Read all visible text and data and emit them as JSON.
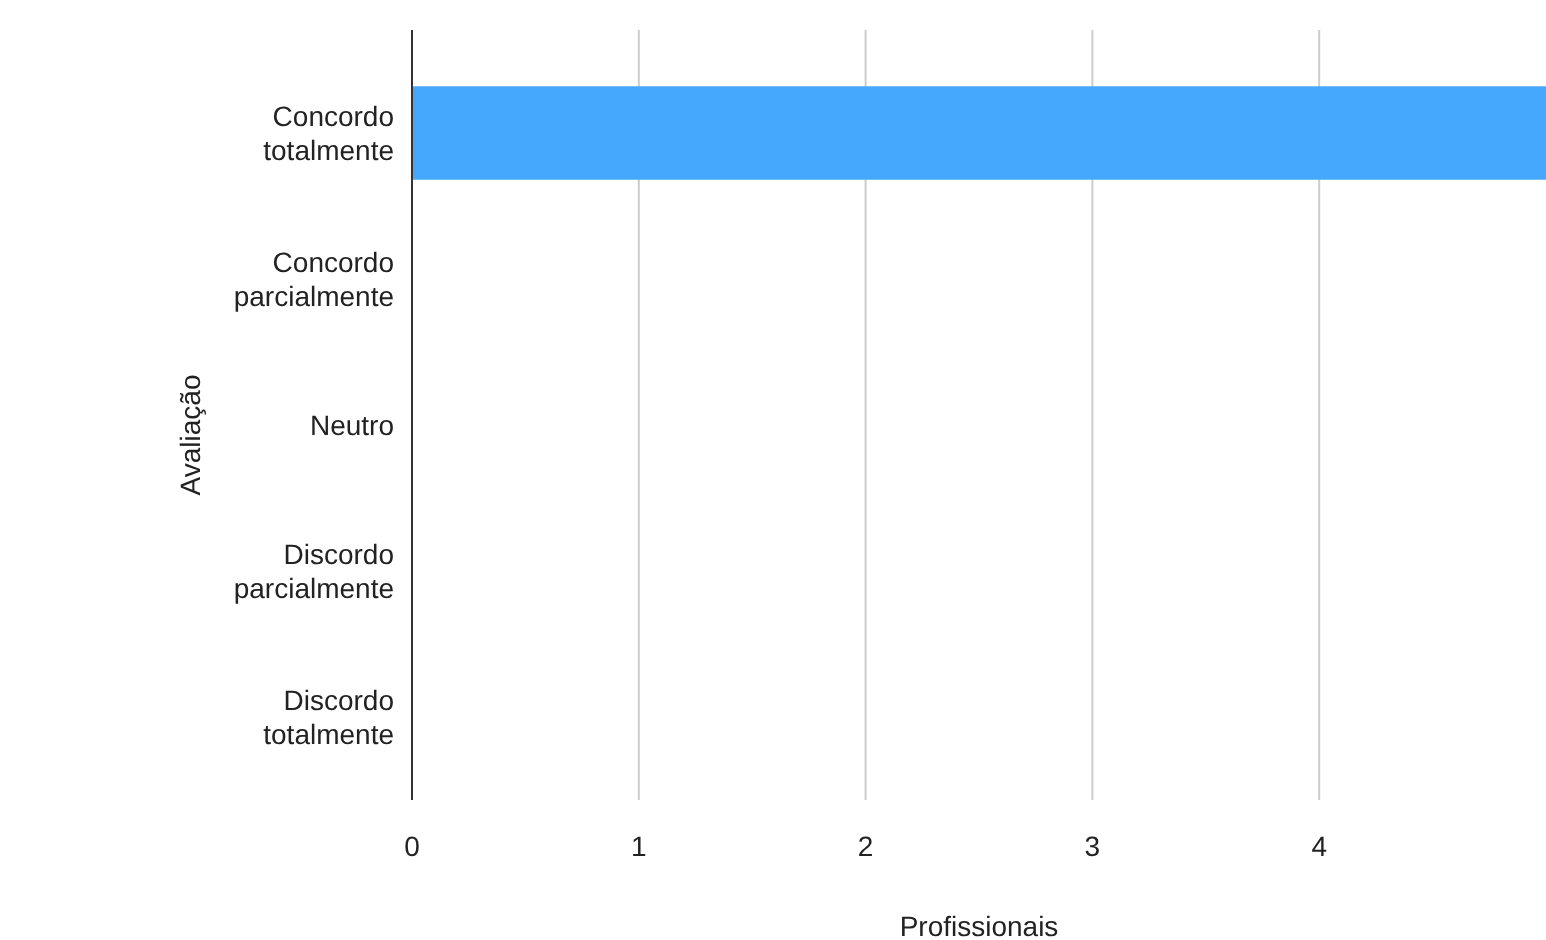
{
  "chart_data": {
    "type": "bar",
    "orientation": "horizontal",
    "xlabel": "Profissionais",
    "ylabel": "Avaliação",
    "categories": [
      "Concordo totalmente",
      "Concordo parcialmente",
      "Neutro",
      "Discordo parcialmente",
      "Discordo totalmente"
    ],
    "values": [
      5,
      0,
      0,
      0,
      0
    ],
    "color": "#45a8fc",
    "xlim": [
      0,
      5
    ],
    "xticks": [
      0,
      1,
      2,
      3,
      4
    ],
    "grid": "x"
  }
}
